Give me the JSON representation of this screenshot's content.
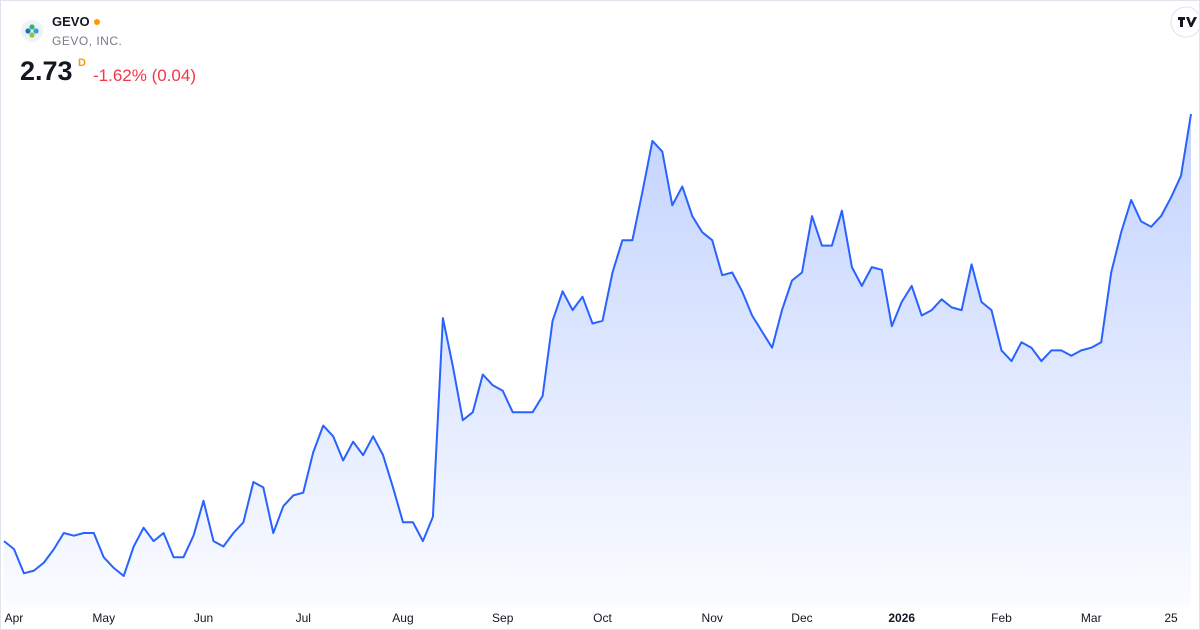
{
  "header": {
    "symbol": "GEVO",
    "company": "GEVO, INC.",
    "price": "2.73",
    "interval": "D",
    "change": "-1.62% (0.04)"
  },
  "chart_data": {
    "type": "area",
    "color": "#2962ff",
    "categories": [
      null,
      "Apr",
      null,
      null,
      null,
      null,
      null,
      null,
      null,
      null,
      "May",
      null,
      null,
      null,
      null,
      null,
      null,
      null,
      null,
      null,
      "Jun",
      null,
      null,
      null,
      null,
      null,
      null,
      null,
      null,
      null,
      "Jul",
      null,
      null,
      null,
      null,
      null,
      null,
      null,
      null,
      null,
      "Aug",
      null,
      null,
      null,
      null,
      null,
      null,
      null,
      null,
      null,
      "Sep",
      null,
      null,
      null,
      null,
      null,
      null,
      null,
      null,
      null,
      "Oct",
      null,
      null,
      null,
      null,
      null,
      null,
      null,
      null,
      null,
      null,
      "Nov",
      null,
      null,
      null,
      null,
      null,
      null,
      null,
      null,
      "Dec",
      null,
      null,
      null,
      null,
      null,
      null,
      null,
      null,
      null,
      "2026",
      null,
      null,
      null,
      null,
      null,
      null,
      null,
      null,
      null,
      "Feb",
      null,
      null,
      null,
      null,
      null,
      null,
      null,
      null,
      "Mar",
      null,
      null,
      null,
      null,
      null,
      null,
      null,
      "25",
      null,
      null
    ],
    "values": [
      1.14,
      1.11,
      1.02,
      1.03,
      1.06,
      1.11,
      1.17,
      1.16,
      1.17,
      1.17,
      1.08,
      1.04,
      1.01,
      1.12,
      1.19,
      1.14,
      1.17,
      1.08,
      1.08,
      1.16,
      1.29,
      1.14,
      1.12,
      1.17,
      1.21,
      1.36,
      1.34,
      1.17,
      1.27,
      1.31,
      1.32,
      1.47,
      1.57,
      1.53,
      1.44,
      1.51,
      1.46,
      1.53,
      1.46,
      1.34,
      1.21,
      1.21,
      1.14,
      1.23,
      1.97,
      1.79,
      1.59,
      1.62,
      1.76,
      1.72,
      1.7,
      1.62,
      1.62,
      1.62,
      1.68,
      1.96,
      2.07,
      2.0,
      2.05,
      1.95,
      1.96,
      2.14,
      2.26,
      2.26,
      2.44,
      2.63,
      2.59,
      2.39,
      2.46,
      2.35,
      2.29,
      2.26,
      2.13,
      2.14,
      2.07,
      1.98,
      1.92,
      1.86,
      2.0,
      2.11,
      2.14,
      2.35,
      2.24,
      2.24,
      2.37,
      2.16,
      2.09,
      2.16,
      2.15,
      1.94,
      2.03,
      2.09,
      1.98,
      2.0,
      2.04,
      2.01,
      2.0,
      2.17,
      2.03,
      2.0,
      1.85,
      1.81,
      1.88,
      1.86,
      1.81,
      1.85,
      1.85,
      1.83,
      1.85,
      1.86,
      1.88,
      2.14,
      2.29,
      2.41,
      2.33,
      2.31,
      2.35,
      2.42,
      2.5,
      2.73
    ]
  }
}
